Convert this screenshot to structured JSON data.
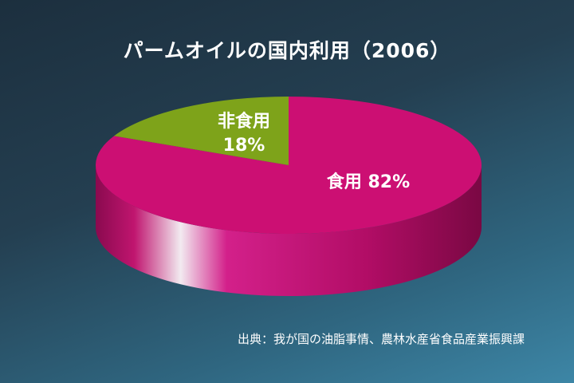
{
  "chart_data": {
    "type": "pie",
    "title": "パームオイルの国内利用（2006）",
    "slices": [
      {
        "name": "食用",
        "value": 82,
        "label": "食用 82%",
        "color": "#cc0f73"
      },
      {
        "name": "非食用",
        "value": 18,
        "label": "非食用\n18%",
        "color": "#7ea31a"
      }
    ],
    "style": "3d",
    "legend": "none"
  },
  "source_note": "出典：我が国の油脂事情、農林水産省食品産業振興課"
}
